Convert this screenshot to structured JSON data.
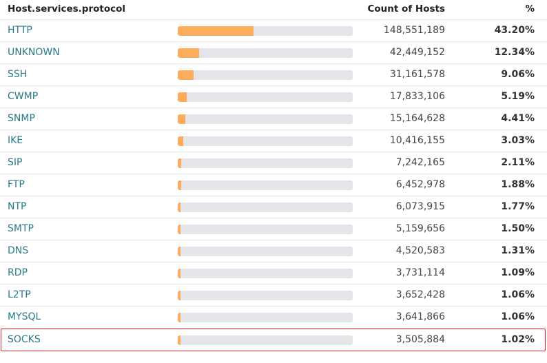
{
  "header": {
    "protocol_label": "Host.services.protocol",
    "count_label": "Count of Hosts",
    "pct_label": "%"
  },
  "colors": {
    "bar_fill": "#ffab5e",
    "bar_track": "#e3e5e8",
    "link": "#2a7a8c",
    "highlight_border": "#e0242c"
  },
  "rows": [
    {
      "protocol": "HTTP",
      "count": "148,551,189",
      "pct": "43.20%",
      "fraction": 0.432
    },
    {
      "protocol": "UNKNOWN",
      "count": "42,449,152",
      "pct": "12.34%",
      "fraction": 0.1234
    },
    {
      "protocol": "SSH",
      "count": "31,161,578",
      "pct": "9.06%",
      "fraction": 0.0906
    },
    {
      "protocol": "CWMP",
      "count": "17,833,106",
      "pct": "5.19%",
      "fraction": 0.0519
    },
    {
      "protocol": "SNMP",
      "count": "15,164,628",
      "pct": "4.41%",
      "fraction": 0.0441
    },
    {
      "protocol": "IKE",
      "count": "10,416,155",
      "pct": "3.03%",
      "fraction": 0.0303
    },
    {
      "protocol": "SIP",
      "count": "7,242,165",
      "pct": "2.11%",
      "fraction": 0.0211
    },
    {
      "protocol": "FTP",
      "count": "6,452,978",
      "pct": "1.88%",
      "fraction": 0.0188
    },
    {
      "protocol": "NTP",
      "count": "6,073,915",
      "pct": "1.77%",
      "fraction": 0.0177
    },
    {
      "protocol": "SMTP",
      "count": "5,159,656",
      "pct": "1.50%",
      "fraction": 0.015
    },
    {
      "protocol": "DNS",
      "count": "4,520,583",
      "pct": "1.31%",
      "fraction": 0.0131
    },
    {
      "protocol": "RDP",
      "count": "3,731,114",
      "pct": "1.09%",
      "fraction": 0.0109
    },
    {
      "protocol": "L2TP",
      "count": "3,652,428",
      "pct": "1.06%",
      "fraction": 0.0106
    },
    {
      "protocol": "MYSQL",
      "count": "3,641,866",
      "pct": "1.06%",
      "fraction": 0.0106
    },
    {
      "protocol": "SOCKS",
      "count": "3,505,884",
      "pct": "1.02%",
      "fraction": 0.0102,
      "highlighted": true
    }
  ]
}
